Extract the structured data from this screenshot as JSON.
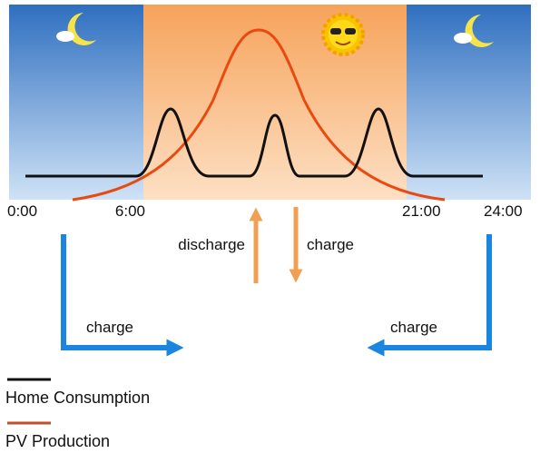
{
  "time_labels": [
    "0:00",
    "6:00",
    "21:00",
    "24:00"
  ],
  "flows": {
    "discharge": "discharge",
    "charge_grid": "charge",
    "charge_morning": "charge",
    "charge_evening": "charge"
  },
  "legend": [
    {
      "label": "Home Consumption",
      "color": "#111111"
    },
    {
      "label": "PV Production",
      "color": "#c0502a"
    }
  ]
}
